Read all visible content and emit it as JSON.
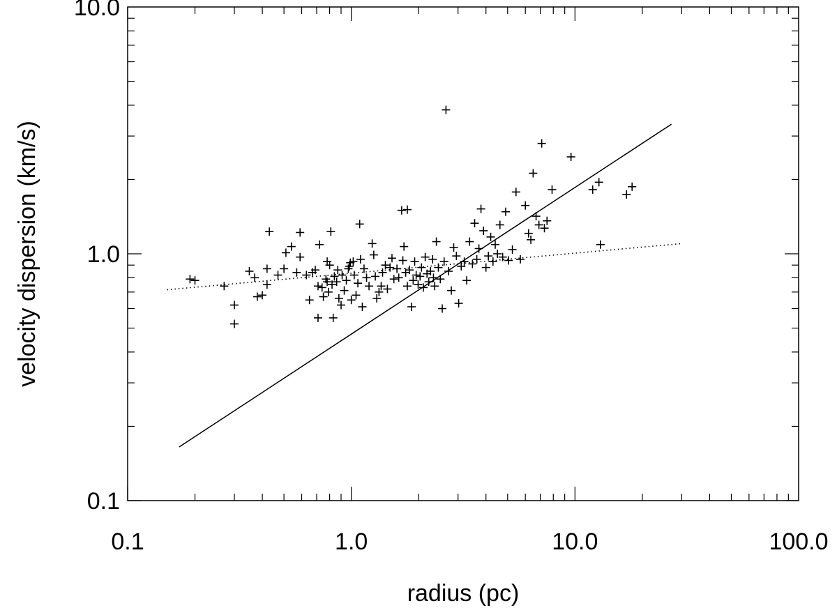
{
  "chart_data": {
    "type": "scatter",
    "title": "",
    "xlabel": "radius (pc)",
    "ylabel": "velocity dispersion (km/s)",
    "xscale": "log",
    "yscale": "log",
    "xlim": [
      0.1,
      100.0
    ],
    "ylim": [
      0.1,
      10.0
    ],
    "x_tick_labels": [
      {
        "value": 0.1,
        "label": "0.1"
      },
      {
        "value": 1.0,
        "label": "1.0"
      },
      {
        "value": 10.0,
        "label": "10.0"
      },
      {
        "value": 100.0,
        "label": "100.0"
      }
    ],
    "y_tick_labels": [
      {
        "value": 0.1,
        "label": "0.1"
      },
      {
        "value": 1.0,
        "label": "1.0"
      },
      {
        "value": 10.0,
        "label": "10.0"
      }
    ],
    "grid": false,
    "legend": "none",
    "marker": "plus",
    "series": [
      {
        "type": "scatter",
        "points": [
          [
            0.19,
            0.79
          ],
          [
            0.2,
            0.78
          ],
          [
            0.27,
            0.74
          ],
          [
            0.3,
            0.62
          ],
          [
            0.3,
            0.52
          ],
          [
            0.35,
            0.85
          ],
          [
            0.37,
            0.8
          ],
          [
            0.38,
            0.67
          ],
          [
            0.4,
            0.68
          ],
          [
            0.42,
            0.75
          ],
          [
            0.42,
            0.87
          ],
          [
            0.43,
            1.23
          ],
          [
            0.47,
            0.82
          ],
          [
            0.5,
            0.87
          ],
          [
            0.51,
            1.01
          ],
          [
            0.54,
            1.07
          ],
          [
            0.57,
            0.84
          ],
          [
            0.59,
            0.97
          ],
          [
            0.59,
            1.22
          ],
          [
            0.63,
            0.82
          ],
          [
            0.65,
            0.65
          ],
          [
            0.67,
            0.84
          ],
          [
            0.69,
            0.86
          ],
          [
            0.71,
            0.74
          ],
          [
            0.71,
            0.55
          ],
          [
            0.72,
            1.09
          ],
          [
            0.74,
            0.73
          ],
          [
            0.75,
            0.67
          ],
          [
            0.77,
            0.79
          ],
          [
            0.78,
            0.77
          ],
          [
            0.78,
            0.93
          ],
          [
            0.79,
            0.7
          ],
          [
            0.8,
            0.9
          ],
          [
            0.81,
            1.23
          ],
          [
            0.82,
            0.75
          ],
          [
            0.83,
            0.55
          ],
          [
            0.84,
            0.81
          ],
          [
            0.86,
            0.77
          ],
          [
            0.87,
            0.86
          ],
          [
            0.88,
            0.66
          ],
          [
            0.9,
            0.62
          ],
          [
            0.91,
            0.82
          ],
          [
            0.93,
            0.71
          ],
          [
            0.95,
            0.78
          ],
          [
            0.97,
            0.87
          ],
          [
            0.99,
            0.92
          ],
          [
            1.0,
            0.65
          ],
          [
            1.02,
            0.93
          ],
          [
            1.03,
            0.82
          ],
          [
            1.05,
            0.68
          ],
          [
            1.07,
            0.76
          ],
          [
            1.09,
            1.32
          ],
          [
            1.1,
            0.95
          ],
          [
            1.12,
            0.61
          ],
          [
            1.14,
            0.87
          ],
          [
            1.17,
            0.8
          ],
          [
            1.2,
            0.74
          ],
          [
            1.24,
            1.1
          ],
          [
            1.26,
            0.99
          ],
          [
            1.28,
            0.81
          ],
          [
            1.3,
            0.66
          ],
          [
            1.33,
            0.7
          ],
          [
            1.36,
            0.74
          ],
          [
            1.38,
            0.84
          ],
          [
            1.42,
            0.9
          ],
          [
            1.45,
            0.72
          ],
          [
            1.49,
            0.88
          ],
          [
            1.52,
            0.96
          ],
          [
            1.55,
            0.79
          ],
          [
            1.6,
            0.87
          ],
          [
            1.63,
            0.8
          ],
          [
            1.68,
            1.5
          ],
          [
            1.7,
            0.94
          ],
          [
            1.72,
            1.07
          ],
          [
            1.75,
            0.84
          ],
          [
            1.78,
            0.74
          ],
          [
            1.82,
            0.86
          ],
          [
            1.86,
            0.61
          ],
          [
            1.89,
            0.78
          ],
          [
            1.92,
            0.93
          ],
          [
            1.95,
            0.82
          ],
          [
            1.99,
            0.75
          ],
          [
            2.03,
            0.81
          ],
          [
            2.06,
            0.88
          ],
          [
            2.1,
            0.73
          ],
          [
            2.14,
            0.97
          ],
          [
            2.18,
            0.83
          ],
          [
            2.22,
            0.77
          ],
          [
            2.26,
            0.85
          ],
          [
            2.31,
            0.95
          ],
          [
            2.36,
            0.74
          ],
          [
            2.4,
            1.12
          ],
          [
            2.45,
            0.88
          ],
          [
            2.5,
            0.79
          ],
          [
            2.55,
            0.6
          ],
          [
            2.6,
            0.93
          ],
          [
            2.65,
            3.83
          ],
          [
            2.72,
            0.85
          ],
          [
            2.8,
            0.71
          ],
          [
            2.87,
            1.06
          ],
          [
            2.95,
            0.98
          ],
          [
            3.02,
            0.63
          ],
          [
            3.1,
            0.89
          ],
          [
            3.2,
            0.93
          ],
          [
            3.28,
            0.78
          ],
          [
            3.38,
            1.12
          ],
          [
            3.48,
            0.91
          ],
          [
            3.56,
            1.33
          ],
          [
            3.64,
            0.95
          ],
          [
            3.72,
            1.05
          ],
          [
            3.8,
            1.52
          ],
          [
            3.9,
            1.24
          ],
          [
            4.0,
            0.88
          ],
          [
            4.1,
            0.98
          ],
          [
            4.2,
            1.17
          ],
          [
            4.3,
            0.93
          ],
          [
            4.4,
            1.09
          ],
          [
            4.5,
            1.0
          ],
          [
            4.62,
            1.31
          ],
          [
            4.75,
            0.97
          ],
          [
            4.9,
            1.48
          ],
          [
            5.05,
            0.94
          ],
          [
            5.25,
            1.04
          ],
          [
            5.45,
            1.78
          ],
          [
            5.7,
            0.95
          ],
          [
            6.0,
            1.57
          ],
          [
            6.2,
            1.21
          ],
          [
            6.35,
            1.14
          ],
          [
            6.5,
            2.12
          ],
          [
            6.7,
            1.42
          ],
          [
            6.9,
            1.31
          ],
          [
            7.1,
            2.8
          ],
          [
            7.3,
            1.27
          ],
          [
            7.5,
            1.36
          ],
          [
            7.9,
            1.82
          ],
          [
            9.6,
            2.47
          ],
          [
            12.0,
            1.82
          ],
          [
            12.8,
            1.95
          ],
          [
            13.0,
            1.09
          ],
          [
            17.0,
            1.74
          ],
          [
            18.0,
            1.87
          ],
          [
            1.78,
            1.51
          ],
          [
            0.98,
            0.89
          ],
          [
            2.33,
            0.8
          ]
        ]
      },
      {
        "type": "line",
        "style": "solid",
        "points": [
          [
            0.17,
            0.165
          ],
          [
            27.0,
            3.35
          ]
        ]
      },
      {
        "type": "line",
        "style": "dotted",
        "points": [
          [
            0.15,
            0.715
          ],
          [
            30.0,
            1.1
          ]
        ]
      }
    ]
  }
}
